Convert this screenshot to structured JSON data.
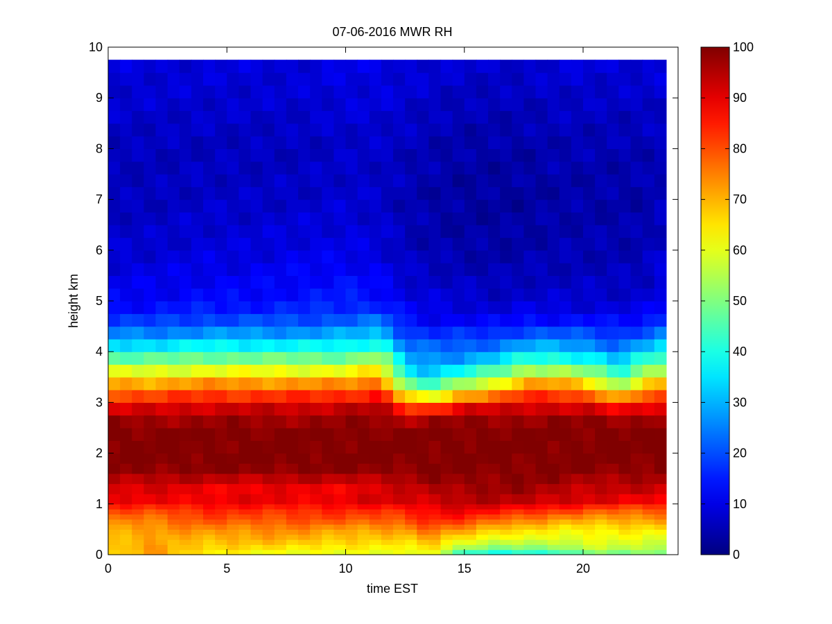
{
  "chart_data": {
    "type": "heatmap",
    "title": "07-06-2016 MWR RH",
    "xlabel": "time EST",
    "ylabel": "height km",
    "xlim": [
      0,
      24
    ],
    "ylim": [
      0,
      10
    ],
    "x_ticks": [
      0,
      5,
      10,
      15,
      20
    ],
    "y_ticks": [
      0,
      1,
      2,
      3,
      4,
      5,
      6,
      7,
      8,
      9,
      10
    ],
    "grid": false,
    "colormap": "jet",
    "colorbar": {
      "range": [
        0,
        100
      ],
      "ticks": [
        0,
        10,
        20,
        30,
        40,
        50,
        60,
        70,
        80,
        90,
        100
      ],
      "placement": "right"
    },
    "x_values": [
      0.0,
      0.5,
      1.0,
      1.5,
      2.0,
      2.5,
      3.0,
      3.5,
      4.0,
      4.5,
      5.0,
      5.5,
      6.0,
      6.5,
      7.0,
      7.5,
      8.0,
      8.5,
      9.0,
      9.5,
      10.0,
      10.5,
      11.0,
      11.5,
      12.0,
      12.5,
      13.0,
      13.5,
      14.0,
      14.5,
      15.0,
      15.5,
      16.0,
      16.5,
      17.0,
      17.5,
      18.0,
      18.5,
      19.0,
      19.5,
      20.0,
      20.5,
      21.0,
      21.5,
      22.0,
      22.5,
      23.0,
      23.5
    ],
    "y_values": [
      0.0,
      0.1,
      0.2,
      0.3,
      0.4,
      0.5,
      0.6,
      0.7,
      0.8,
      0.9,
      1.0,
      1.2,
      1.4,
      1.6,
      1.8,
      2.0,
      2.25,
      2.5,
      2.75,
      3.0,
      3.25,
      3.5,
      3.75,
      4.0,
      4.25,
      4.5,
      4.75,
      5.0,
      5.25,
      5.5,
      5.75,
      6.0,
      6.25,
      6.5,
      6.75,
      7.0,
      7.25,
      7.5,
      7.75,
      8.0,
      8.25,
      8.5,
      8.75,
      9.0,
      9.25,
      9.5,
      9.75
    ],
    "keys_time": [
      0.0,
      2.0,
      4.0,
      6.0,
      8.0,
      10.0,
      11.5,
      12.5,
      13.5,
      15.0,
      16.5,
      17.5,
      19.0,
      20.5,
      21.5,
      22.5,
      23.5
    ],
    "keys_height": [
      0.0,
      0.1,
      0.3,
      0.5,
      0.7,
      0.9,
      1.05,
      1.2,
      1.4,
      1.6,
      1.8,
      2.0,
      2.4,
      2.75,
      2.9,
      3.05,
      3.2,
      3.4,
      3.6,
      3.8,
      4.0,
      4.2,
      4.4,
      4.6,
      4.8,
      5.0,
      5.5,
      6.0,
      7.0,
      8.0,
      9.0,
      9.75
    ],
    "values_at_keys": [
      [
        62,
        74,
        62,
        60,
        60,
        57,
        60,
        60,
        60,
        34,
        34,
        36,
        36,
        46,
        46,
        48,
        48
      ],
      [
        64,
        74,
        66,
        64,
        64,
        62,
        62,
        62,
        66,
        50,
        48,
        50,
        50,
        56,
        56,
        56,
        56
      ],
      [
        68,
        70,
        70,
        70,
        70,
        68,
        66,
        66,
        72,
        62,
        58,
        60,
        60,
        60,
        60,
        60,
        60
      ],
      [
        72,
        72,
        74,
        74,
        74,
        72,
        72,
        72,
        78,
        74,
        66,
        66,
        64,
        64,
        64,
        64,
        64
      ],
      [
        76,
        76,
        80,
        80,
        80,
        80,
        80,
        80,
        84,
        84,
        78,
        76,
        72,
        72,
        72,
        72,
        72
      ],
      [
        82,
        82,
        84,
        84,
        84,
        84,
        84,
        86,
        88,
        90,
        88,
        86,
        84,
        80,
        80,
        80,
        80
      ],
      [
        88,
        88,
        90,
        90,
        90,
        90,
        92,
        92,
        92,
        94,
        94,
        94,
        92,
        90,
        88,
        88,
        88
      ],
      [
        90,
        90,
        88,
        88,
        88,
        88,
        90,
        92,
        94,
        96,
        96,
        96,
        94,
        92,
        92,
        92,
        92
      ],
      [
        92,
        92,
        90,
        90,
        90,
        90,
        92,
        92,
        96,
        98,
        98,
        98,
        96,
        94,
        94,
        94,
        94
      ],
      [
        98,
        98,
        98,
        98,
        98,
        98,
        98,
        98,
        99,
        99,
        99,
        99,
        99,
        98,
        98,
        98,
        98
      ],
      [
        100,
        100,
        100,
        100,
        100,
        100,
        100,
        100,
        100,
        100,
        100,
        100,
        100,
        100,
        100,
        100,
        100
      ],
      [
        100,
        100,
        100,
        100,
        100,
        100,
        100,
        100,
        100,
        100,
        100,
        100,
        100,
        100,
        100,
        100,
        100
      ],
      [
        100,
        100,
        100,
        100,
        100,
        100,
        100,
        100,
        100,
        100,
        100,
        100,
        100,
        100,
        100,
        100,
        100
      ],
      [
        96,
        96,
        96,
        96,
        96,
        96,
        98,
        92,
        96,
        96,
        97,
        97,
        97,
        97,
        97,
        97,
        97
      ],
      [
        90,
        90,
        92,
        92,
        92,
        94,
        94,
        82,
        80,
        90,
        90,
        92,
        92,
        90,
        84,
        90,
        90
      ],
      [
        84,
        84,
        86,
        86,
        86,
        88,
        90,
        72,
        66,
        80,
        82,
        86,
        86,
        84,
        74,
        82,
        84
      ],
      [
        78,
        78,
        80,
        80,
        80,
        80,
        84,
        60,
        52,
        66,
        72,
        80,
        80,
        74,
        62,
        74,
        76
      ],
      [
        70,
        70,
        72,
        72,
        72,
        72,
        76,
        48,
        40,
        52,
        60,
        70,
        70,
        62,
        50,
        64,
        68
      ],
      [
        60,
        60,
        62,
        62,
        62,
        62,
        66,
        38,
        32,
        40,
        48,
        56,
        56,
        50,
        40,
        54,
        58
      ],
      [
        50,
        50,
        52,
        52,
        52,
        52,
        58,
        32,
        28,
        30,
        36,
        44,
        44,
        40,
        32,
        44,
        50
      ],
      [
        40,
        40,
        42,
        42,
        42,
        42,
        48,
        26,
        24,
        24,
        28,
        34,
        34,
        30,
        26,
        34,
        40
      ],
      [
        32,
        32,
        34,
        34,
        34,
        34,
        38,
        22,
        20,
        20,
        22,
        26,
        26,
        24,
        20,
        26,
        32
      ],
      [
        24,
        24,
        26,
        26,
        26,
        28,
        30,
        18,
        16,
        16,
        16,
        20,
        20,
        18,
        16,
        20,
        24
      ],
      [
        18,
        18,
        20,
        20,
        20,
        22,
        24,
        14,
        12,
        12,
        12,
        14,
        14,
        14,
        12,
        14,
        18
      ],
      [
        14,
        14,
        16,
        16,
        16,
        18,
        18,
        12,
        10,
        10,
        9,
        10,
        10,
        10,
        10,
        10,
        14
      ],
      [
        12,
        12,
        13,
        13,
        14,
        15,
        14,
        10,
        9,
        8,
        7,
        8,
        8,
        8,
        8,
        8,
        12
      ],
      [
        10,
        10,
        11,
        11,
        12,
        13,
        11,
        8,
        7,
        6,
        5,
        6,
        6,
        6,
        6,
        6,
        10
      ],
      [
        8,
        8,
        9,
        9,
        10,
        10,
        9,
        6,
        5,
        4,
        4,
        4,
        5,
        5,
        5,
        5,
        8
      ],
      [
        6,
        6,
        7,
        7,
        7,
        8,
        7,
        5,
        4,
        3,
        3,
        3,
        4,
        4,
        4,
        4,
        6
      ],
      [
        6,
        6,
        6,
        6,
        6,
        7,
        7,
        6,
        5,
        4,
        4,
        4,
        5,
        5,
        5,
        5,
        6
      ],
      [
        8,
        8,
        8,
        8,
        8,
        9,
        9,
        8,
        7,
        6,
        6,
        6,
        7,
        7,
        7,
        7,
        8
      ],
      [
        9,
        9,
        9,
        9,
        9,
        10,
        10,
        9,
        9,
        8,
        8,
        8,
        9,
        9,
        9,
        9,
        9
      ]
    ]
  }
}
